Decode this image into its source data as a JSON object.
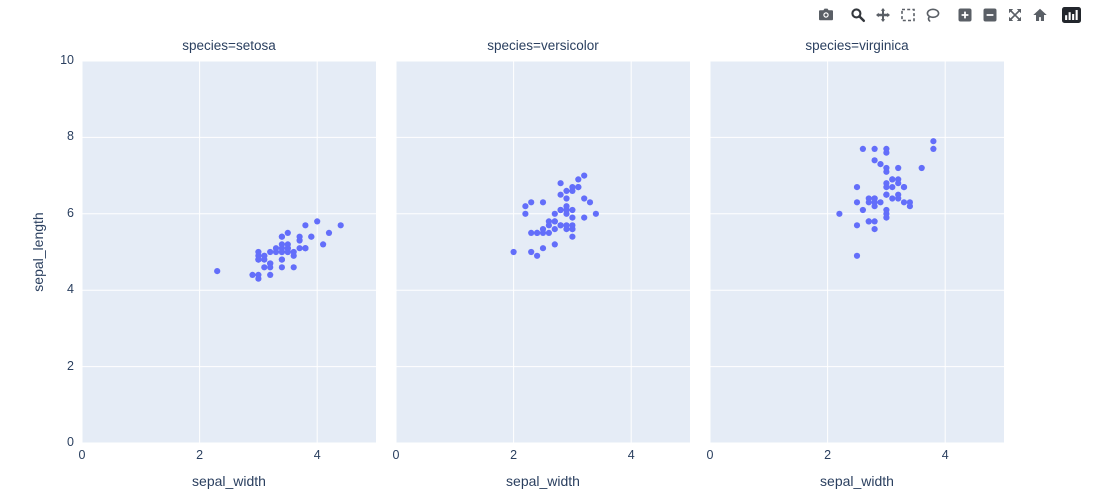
{
  "modebar": {
    "buttons": [
      "camera-icon",
      "zoom-icon",
      "pan-icon",
      "box-select-icon",
      "lasso-icon",
      "zoom-in-icon",
      "zoom-out-icon",
      "autoscale-icon",
      "reset-axes-icon",
      "plotly-logo-icon"
    ]
  },
  "chart_data": {
    "type": "scatter",
    "title": "",
    "xlabel": "sepal_width",
    "ylabel": "sepal_length",
    "x_range": [
      0,
      5
    ],
    "y_range": [
      0,
      10
    ],
    "x_ticks": [
      0,
      2,
      4
    ],
    "y_ticks": [
      0,
      2,
      4,
      6,
      8,
      10
    ],
    "grid": true,
    "legend_position": "none",
    "plot_bg": "#e5ecf6",
    "grid_color": "#ffffff",
    "marker_color": "#636efa",
    "text_color": "#2a3f5f",
    "facets": [
      {
        "title": "species=setosa",
        "x": [
          3.5,
          3.0,
          3.2,
          3.1,
          3.6,
          3.9,
          3.4,
          3.4,
          2.9,
          3.1,
          3.7,
          3.4,
          3.0,
          3.0,
          4.0,
          4.4,
          3.9,
          3.5,
          3.8,
          3.8,
          3.4,
          3.7,
          3.6,
          3.3,
          3.4,
          3.0,
          3.4,
          3.5,
          3.4,
          3.2,
          3.1,
          3.4,
          4.1,
          4.2,
          3.1,
          3.2,
          3.5,
          3.6,
          3.0,
          3.4,
          3.5,
          2.3,
          3.2,
          3.5,
          3.8,
          3.0,
          3.8,
          3.2,
          3.7,
          3.3
        ],
        "y": [
          5.1,
          4.9,
          4.7,
          4.6,
          5.0,
          5.4,
          4.6,
          5.0,
          4.4,
          4.9,
          5.4,
          4.8,
          4.8,
          4.3,
          5.8,
          5.7,
          5.4,
          5.1,
          5.7,
          5.1,
          5.4,
          5.1,
          4.6,
          5.1,
          4.8,
          5.0,
          5.0,
          5.2,
          5.2,
          4.7,
          4.8,
          5.4,
          5.2,
          5.5,
          4.9,
          5.0,
          5.5,
          4.9,
          4.4,
          5.1,
          5.0,
          4.5,
          4.4,
          5.0,
          5.1,
          4.8,
          5.1,
          4.6,
          5.3,
          5.0
        ]
      },
      {
        "title": "species=versicolor",
        "x": [
          3.2,
          3.2,
          3.1,
          2.3,
          2.8,
          2.8,
          3.3,
          2.4,
          2.9,
          2.7,
          2.0,
          3.0,
          2.2,
          2.9,
          2.9,
          3.1,
          3.0,
          2.7,
          2.2,
          2.5,
          3.2,
          2.8,
          2.5,
          2.8,
          2.9,
          3.0,
          2.8,
          3.0,
          2.9,
          2.6,
          2.4,
          2.4,
          2.7,
          2.7,
          3.0,
          3.4,
          3.1,
          2.3,
          3.0,
          2.5,
          2.6,
          3.0,
          2.6,
          2.3,
          2.7,
          3.0,
          2.9,
          2.9,
          2.5,
          2.8
        ],
        "y": [
          7.0,
          6.4,
          6.9,
          5.5,
          6.5,
          5.7,
          6.3,
          4.9,
          6.6,
          5.2,
          5.0,
          5.9,
          6.0,
          6.1,
          5.6,
          6.7,
          5.6,
          5.8,
          6.2,
          5.6,
          5.9,
          6.1,
          6.3,
          6.1,
          6.4,
          6.6,
          6.8,
          6.7,
          6.0,
          5.7,
          5.5,
          5.5,
          5.8,
          6.0,
          5.4,
          6.0,
          6.7,
          6.3,
          5.6,
          5.5,
          5.5,
          6.1,
          5.8,
          5.0,
          5.6,
          5.7,
          5.7,
          6.2,
          5.1,
          5.7
        ]
      },
      {
        "title": "species=virginica",
        "x": [
          3.3,
          2.7,
          3.0,
          2.9,
          3.0,
          3.0,
          2.5,
          2.9,
          2.5,
          3.6,
          3.2,
          2.7,
          3.0,
          2.5,
          2.8,
          3.2,
          3.0,
          3.8,
          2.6,
          2.2,
          3.2,
          2.8,
          2.8,
          2.7,
          3.3,
          3.2,
          2.8,
          3.0,
          2.8,
          3.0,
          2.8,
          3.8,
          2.8,
          2.8,
          2.6,
          3.0,
          3.4,
          3.1,
          3.0,
          3.1,
          3.1,
          3.1,
          2.7,
          3.2,
          3.3,
          3.0,
          2.5,
          3.0,
          3.4,
          3.0
        ],
        "y": [
          6.3,
          5.8,
          7.1,
          6.3,
          6.5,
          7.6,
          4.9,
          7.3,
          6.7,
          7.2,
          6.5,
          6.4,
          6.8,
          5.7,
          5.8,
          6.4,
          6.5,
          7.7,
          7.7,
          6.0,
          6.9,
          5.6,
          7.7,
          6.3,
          6.7,
          7.2,
          6.2,
          6.1,
          6.4,
          7.2,
          7.4,
          7.9,
          6.4,
          6.3,
          6.1,
          7.7,
          6.3,
          6.4,
          6.0,
          6.9,
          6.7,
          6.9,
          5.8,
          6.8,
          6.7,
          6.7,
          6.3,
          6.5,
          6.2,
          5.9
        ]
      }
    ]
  }
}
